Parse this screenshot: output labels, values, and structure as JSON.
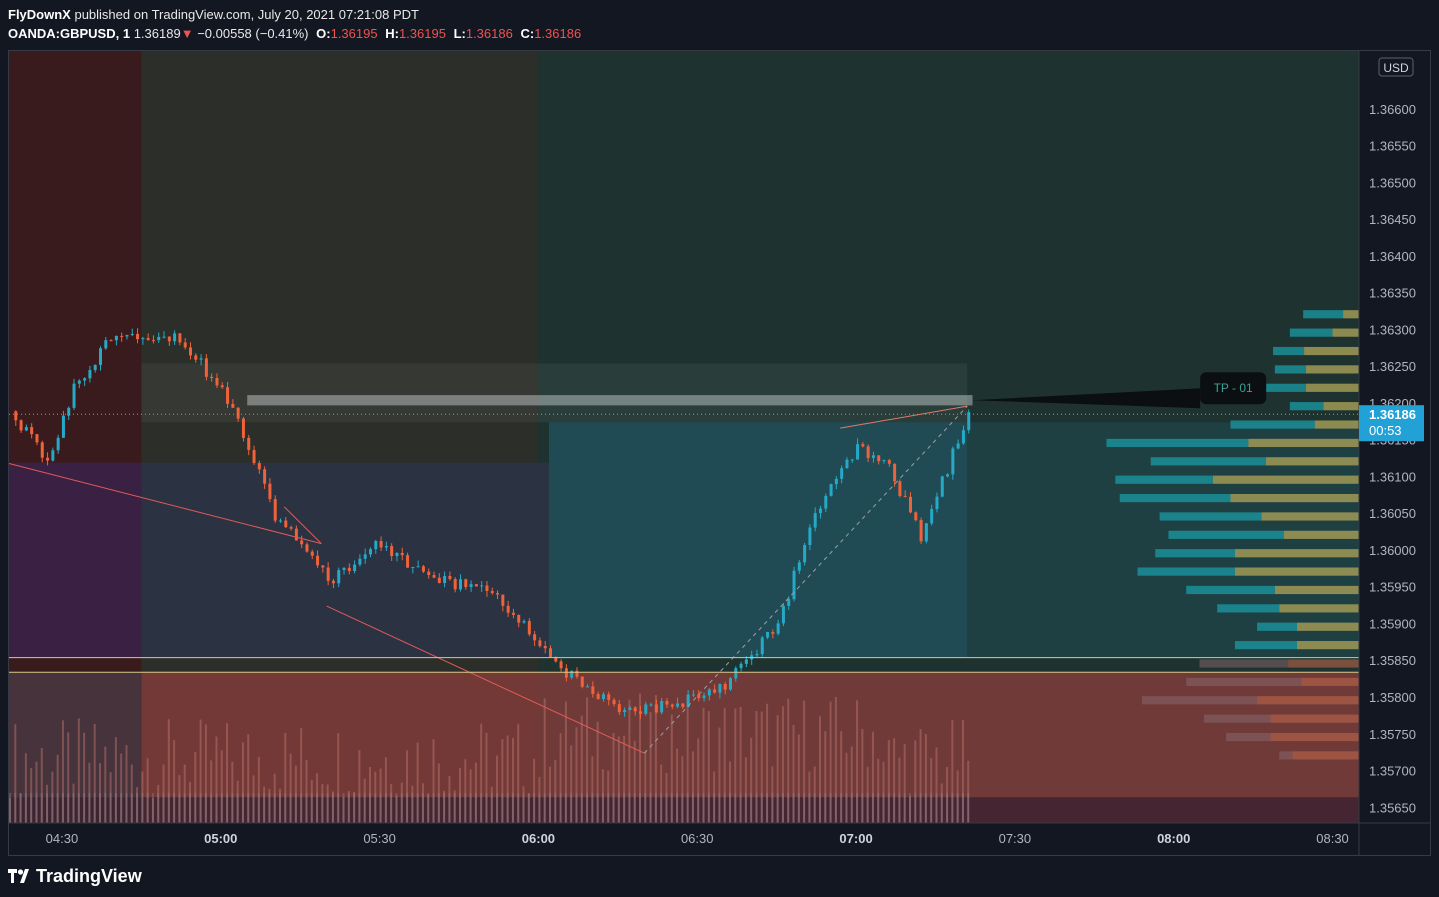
{
  "header": {
    "publisher": "FlyDownX",
    "published_text": "published on TradingView.com, July 20, 2021 07:21:08 PDT",
    "symbol": "OANDA:GBPUSD, 1",
    "last_price": "1.36189",
    "arrow": "▼",
    "change": "−0.00558 (−0.41%)",
    "open_label": "O:",
    "open": "1.36195",
    "high_label": "H:",
    "high": "1.36195",
    "low_label": "L:",
    "low": "1.36186",
    "close_label": "C:",
    "close": "1.36186"
  },
  "price_axis": {
    "currency": "USD",
    "ticks": [
      "1.36600",
      "1.36550",
      "1.36500",
      "1.36450",
      "1.36400",
      "1.36350",
      "1.36300",
      "1.36250",
      "1.36200",
      "1.36150",
      "1.36100",
      "1.36050",
      "1.36000",
      "1.35950",
      "1.35900",
      "1.35850",
      "1.35800",
      "1.35750",
      "1.35700",
      "1.35650"
    ],
    "current_price_label": "1.36186",
    "countdown": "00:53"
  },
  "time_axis": {
    "ticks": [
      {
        "label": "04:30",
        "bold": false
      },
      {
        "label": "05:00",
        "bold": true
      },
      {
        "label": "05:30",
        "bold": false
      },
      {
        "label": "06:00",
        "bold": true
      },
      {
        "label": "06:30",
        "bold": false
      },
      {
        "label": "07:00",
        "bold": true
      },
      {
        "label": "07:30",
        "bold": false
      },
      {
        "label": "08:00",
        "bold": true
      },
      {
        "label": "08:30",
        "bold": false
      }
    ]
  },
  "annotation": {
    "label": "TP - 01"
  },
  "colors": {
    "bull": "#26a9c6",
    "bear": "#f0623a",
    "accent": "#2196f3",
    "up_bar_volume": "#9e6c66"
  },
  "footer": {
    "brand": "TradingView"
  },
  "chart_data": {
    "type": "candlestick",
    "symbol": "OANDA:GBPUSD",
    "interval": "1",
    "currency": "USD",
    "y_range": [
      1.3563,
      1.3668
    ],
    "x_range": [
      "04:20",
      "08:35"
    ],
    "current_price": 1.36186,
    "levels": [
      {
        "name": "TP - 01",
        "price": 1.36205
      },
      {
        "price": 1.35855
      },
      {
        "price": 1.35835
      }
    ],
    "anchor_points": [
      {
        "time": "04:20",
        "price": 1.36119
      },
      {
        "time": "05:19",
        "price": 1.3601
      },
      {
        "time": "05:20",
        "price": 1.35925
      },
      {
        "time": "06:20",
        "price": 1.35725
      },
      {
        "time": "06:57",
        "price": 1.36167
      },
      {
        "time": "07:21",
        "price": 1.36197
      }
    ],
    "close_path": [
      {
        "time": "04:20",
        "price": 1.3619
      },
      {
        "time": "04:27",
        "price": 1.3612
      },
      {
        "time": "04:32",
        "price": 1.3622
      },
      {
        "time": "04:40",
        "price": 1.363
      },
      {
        "time": "04:52",
        "price": 1.3629
      },
      {
        "time": "05:02",
        "price": 1.362
      },
      {
        "time": "05:10",
        "price": 1.3605
      },
      {
        "time": "05:20",
        "price": 1.3596
      },
      {
        "time": "05:30",
        "price": 1.3601
      },
      {
        "time": "05:40",
        "price": 1.3596
      },
      {
        "time": "05:50",
        "price": 1.3595
      },
      {
        "time": "05:58",
        "price": 1.3589
      },
      {
        "time": "06:05",
        "price": 1.35835
      },
      {
        "time": "06:15",
        "price": 1.3578
      },
      {
        "time": "06:25",
        "price": 1.3579
      },
      {
        "time": "06:35",
        "price": 1.3582
      },
      {
        "time": "06:45",
        "price": 1.359
      },
      {
        "time": "06:52",
        "price": 1.3605
      },
      {
        "time": "07:00",
        "price": 1.3614
      },
      {
        "time": "07:06",
        "price": 1.3611
      },
      {
        "time": "07:12",
        "price": 1.3602
      },
      {
        "time": "07:21",
        "price": 1.36186
      }
    ],
    "volume_profile": [
      {
        "price": 1.36315,
        "up": 0.45,
        "down": 0.18
      },
      {
        "price": 1.3629,
        "up": 0.48,
        "down": 0.3
      },
      {
        "price": 1.36265,
        "up": 0.35,
        "down": 0.62
      },
      {
        "price": 1.3624,
        "up": 0.35,
        "down": 0.6
      },
      {
        "price": 1.36215,
        "up": 0.55,
        "down": 0.6
      },
      {
        "price": 1.3619,
        "up": 0.38,
        "down": 0.4
      },
      {
        "price": 1.36165,
        "up": 0.95,
        "down": 0.5
      },
      {
        "price": 1.3614,
        "up": 1.6,
        "down": 1.25
      },
      {
        "price": 1.36115,
        "up": 1.3,
        "down": 1.05
      },
      {
        "price": 1.3609,
        "up": 1.1,
        "down": 1.65
      },
      {
        "price": 1.36065,
        "up": 1.25,
        "down": 1.45
      },
      {
        "price": 1.3604,
        "up": 1.15,
        "down": 1.1
      },
      {
        "price": 1.36015,
        "up": 1.3,
        "down": 0.85
      },
      {
        "price": 1.3599,
        "up": 0.9,
        "down": 1.4
      },
      {
        "price": 1.35965,
        "up": 1.1,
        "down": 1.4
      },
      {
        "price": 1.3594,
        "up": 1.0,
        "down": 0.95
      },
      {
        "price": 1.35915,
        "up": 0.7,
        "down": 0.9
      },
      {
        "price": 1.3589,
        "up": 0.45,
        "down": 0.7
      },
      {
        "price": 1.35865,
        "up": 0.7,
        "down": 0.7
      },
      {
        "price": 1.3584,
        "up": 1.0,
        "down": 0.8
      },
      {
        "price": 1.35815,
        "up": 1.3,
        "down": 0.65
      },
      {
        "price": 1.3579,
        "up": 1.3,
        "down": 1.15
      },
      {
        "price": 1.35765,
        "up": 0.75,
        "down": 1.0
      },
      {
        "price": 1.3574,
        "up": 0.5,
        "down": 1.0
      },
      {
        "price": 1.35715,
        "up": 0.15,
        "down": 0.75
      }
    ]
  }
}
